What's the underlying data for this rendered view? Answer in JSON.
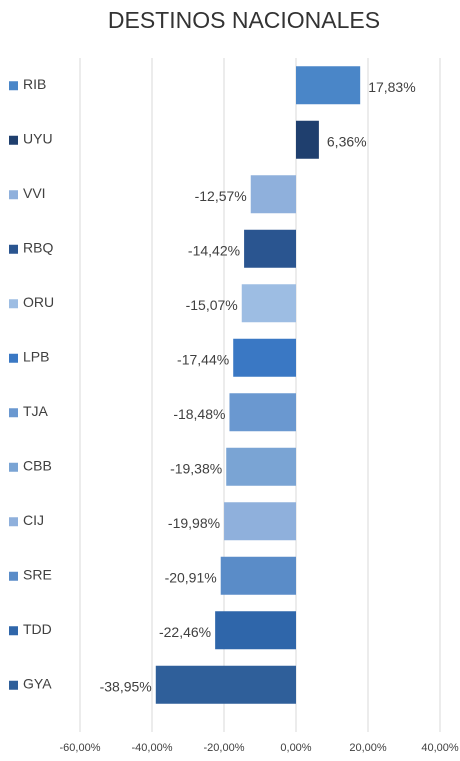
{
  "chart_data": {
    "type": "bar",
    "orientation": "horizontal",
    "title": "DESTINOS NACIONALES",
    "categories": [
      "RIB",
      "UYU",
      "VVI",
      "RBQ",
      "ORU",
      "LPB",
      "TJA",
      "CBB",
      "CIJ",
      "SRE",
      "TDD",
      "GYA"
    ],
    "values": [
      17.83,
      6.36,
      -12.57,
      -14.42,
      -15.07,
      -17.44,
      -18.48,
      -19.38,
      -19.98,
      -20.91,
      -22.46,
      -38.95
    ],
    "value_labels": [
      "17,83%",
      "6,36%",
      "-12,57%",
      "-14,42%",
      "-15,07%",
      "-17,44%",
      "-18,48%",
      "-19,38%",
      "-19,98%",
      "-20,91%",
      "-22,46%",
      "-38,95%"
    ],
    "colors": [
      "#4a86c8",
      "#1f3f6e",
      "#8fb0dc",
      "#2a5590",
      "#9dbde3",
      "#3a78c4",
      "#6a98d0",
      "#7aa4d4",
      "#8fb0dc",
      "#5a8cc8",
      "#2f66aa",
      "#2f5f9a"
    ],
    "xlim": [
      -60,
      40
    ],
    "xticks": [
      {
        "value": -60,
        "label": "-60,00%"
      },
      {
        "value": -40,
        "label": "-40,00%"
      },
      {
        "value": -20,
        "label": "-20,00%"
      },
      {
        "value": 0,
        "label": "0,00%"
      },
      {
        "value": 20,
        "label": "20,00%"
      },
      {
        "value": 40,
        "label": "40,00%"
      }
    ],
    "grid": true
  }
}
